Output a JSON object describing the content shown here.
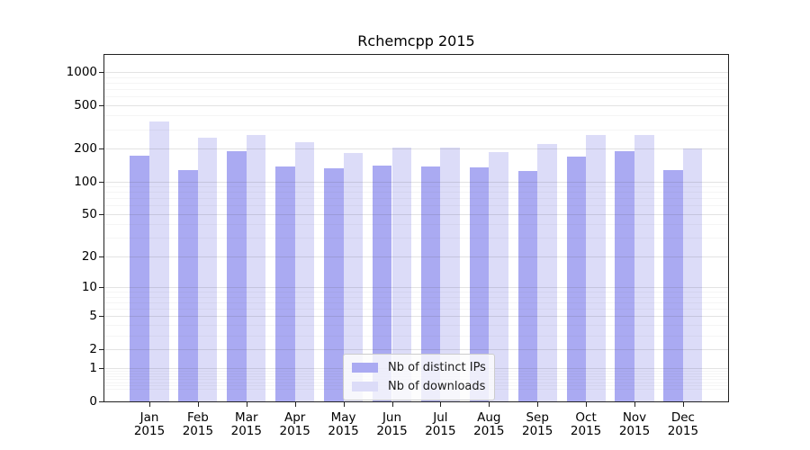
{
  "chart_data": {
    "type": "bar",
    "title": "Rchemcpp 2015",
    "categories": [
      "Jan",
      "Feb",
      "Mar",
      "Apr",
      "May",
      "Jun",
      "Jul",
      "Aug",
      "Sep",
      "Oct",
      "Nov",
      "Dec"
    ],
    "category_year": "2015",
    "series": [
      {
        "name": "Nb of distinct IPs",
        "color": "#aaaaf2",
        "values": [
          171,
          127,
          188,
          137,
          132,
          140,
          137,
          134,
          125,
          169,
          189,
          127
        ]
      },
      {
        "name": "Nb of downloads",
        "color": "#dcdcf8",
        "values": [
          355,
          252,
          264,
          227,
          182,
          206,
          204,
          184,
          221,
          266,
          266,
          200
        ]
      }
    ],
    "xlabel": "",
    "ylabel": "",
    "y_axis": {
      "scale": "log1p",
      "ticks": [
        0,
        1,
        2,
        5,
        10,
        20,
        50,
        100,
        200,
        500,
        1000
      ],
      "minor_ticks": [
        0.3,
        0.4,
        0.5,
        0.6,
        0.7,
        0.8,
        0.9,
        3,
        4,
        6,
        7,
        8,
        9,
        30,
        40,
        60,
        70,
        80,
        90,
        300,
        400,
        600,
        700,
        800,
        900
      ],
      "ylim": [
        0,
        1430
      ]
    },
    "grid": "on",
    "legend_position": "lower center",
    "bar_group_width": 0.8
  }
}
